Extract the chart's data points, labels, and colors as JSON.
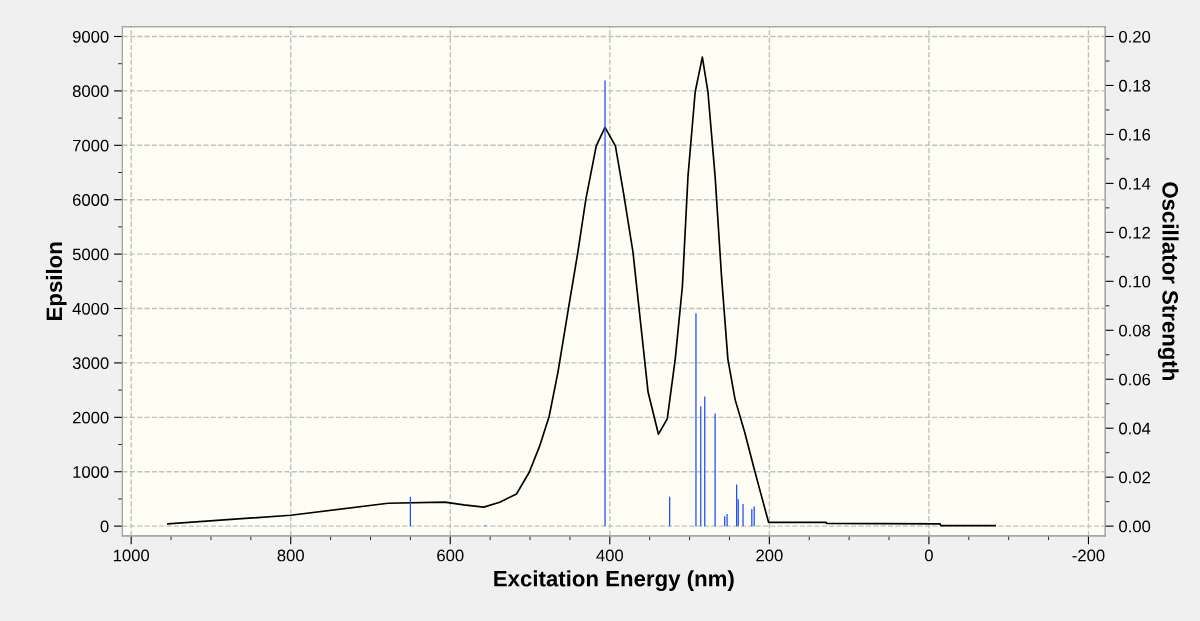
{
  "chart_data": {
    "type": "line",
    "xlabel": "Excitation Energy (nm)",
    "ylabel": "Epsilon",
    "y2label": "Oscillator Strength",
    "xlim": [
      1011,
      -221
    ],
    "xticks": [
      1000,
      800,
      600,
      400,
      200,
      0,
      -200
    ],
    "ylim": [
      -180,
      9180
    ],
    "yticks": [
      0,
      1000,
      2000,
      3000,
      4000,
      5000,
      6000,
      7000,
      8000,
      9000
    ],
    "y2lim": [
      -0.004,
      0.204
    ],
    "y2ticks": [
      {
        "value": 0,
        "label": "0.00"
      },
      {
        "value": 0.02,
        "label": "0.02"
      },
      {
        "value": 0.04,
        "label": "0.04"
      },
      {
        "value": 0.06,
        "label": "0.06"
      },
      {
        "value": 0.08,
        "label": "0.08"
      },
      {
        "value": 0.1,
        "label": "0.10"
      },
      {
        "value": 0.12,
        "label": "0.12"
      },
      {
        "value": 0.14,
        "label": "0.14"
      },
      {
        "value": 0.16,
        "label": "0.16"
      },
      {
        "value": 0.18,
        "label": "0.18"
      },
      {
        "value": 0.2,
        "label": "0.20"
      }
    ],
    "grid": true,
    "legend": false,
    "marker": "none",
    "line_style": "solid",
    "series": [
      {
        "color": "#000000",
        "x": [
          954,
          800,
          678,
          607,
          583,
          558,
          538,
          517,
          501,
          488,
          476,
          465,
          452,
          440,
          430,
          417,
          406,
          393,
          383,
          371,
          361,
          352,
          339,
          328,
          318,
          309,
          302,
          293,
          284,
          277,
          268,
          260,
          252,
          243,
          231,
          219,
          201,
          129,
          128,
          -14,
          -15,
          -83
        ],
        "values": [
          40,
          200,
          420,
          440,
          390,
          350,
          440,
          590,
          990,
          1470,
          2020,
          2830,
          3990,
          5040,
          6010,
          6990,
          7330,
          6990,
          6140,
          5040,
          3680,
          2460,
          1690,
          1970,
          3070,
          4410,
          6430,
          7980,
          8620,
          7980,
          6430,
          4600,
          3070,
          2330,
          1730,
          1050,
          70,
          70,
          50,
          40,
          10,
          10
        ]
      },
      {
        "type": "bar",
        "axis": "y2",
        "color": "#1f4fff",
        "x": [
          650,
          556,
          406,
          325,
          292,
          286,
          281,
          268,
          256,
          253,
          241,
          239,
          233,
          222,
          219
        ],
        "values": [
          0.012,
          0.0004,
          0.182,
          0.012,
          0.087,
          0.049,
          0.053,
          0.046,
          0.004,
          0.005,
          0.017,
          0.011,
          0.009,
          0.007,
          0.008
        ]
      }
    ]
  }
}
